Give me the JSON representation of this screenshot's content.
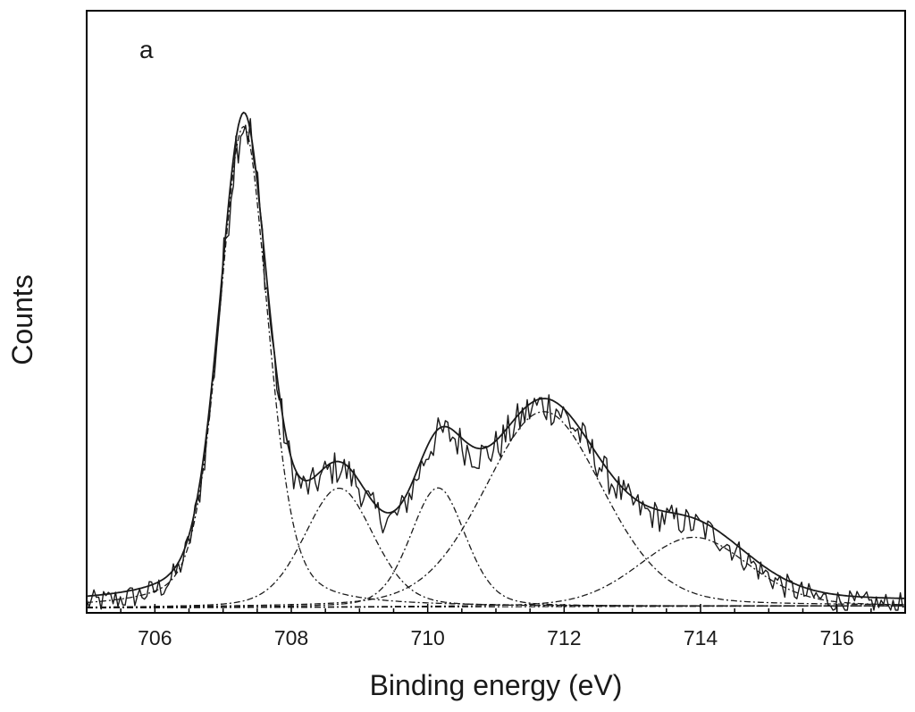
{
  "chart_data": {
    "type": "line",
    "panel_label": "a",
    "xlabel": "Binding energy (eV)",
    "ylabel": "Counts",
    "xlim": [
      705,
      717
    ],
    "ylim": [
      0,
      1000
    ],
    "x_ticks": [
      706,
      708,
      710,
      712,
      714,
      716
    ],
    "x_tick_labels": [
      "706",
      "708",
      "710",
      "712",
      "714",
      "716"
    ],
    "grid": false,
    "legend": "none",
    "colors": {
      "line": "#1a1a1a",
      "axis": "#000000",
      "background": "#ffffff"
    },
    "background_points": [
      {
        "x": 705,
        "y": 4
      },
      {
        "x": 710,
        "y": 6
      },
      {
        "x": 717,
        "y": 8
      }
    ],
    "components": [
      {
        "name": "component-1",
        "center": 707.3,
        "height": 905,
        "fwhm": 0.85,
        "lorentz_fraction": 0.35,
        "style": "dashdot"
      },
      {
        "name": "component-2",
        "center": 708.7,
        "height": 224,
        "fwhm": 1.2,
        "lorentz_fraction": 0.25,
        "style": "dashdot"
      },
      {
        "name": "component-3",
        "center": 710.15,
        "height": 224,
        "fwhm": 0.95,
        "lorentz_fraction": 0.25,
        "style": "dashdot"
      },
      {
        "name": "component-4",
        "center": 711.7,
        "height": 367,
        "fwhm": 2.05,
        "lorentz_fraction": 0.2,
        "style": "dashdot"
      },
      {
        "name": "component-5",
        "center": 713.9,
        "height": 130,
        "fwhm": 1.9,
        "lorentz_fraction": 0.2,
        "style": "dashdot"
      }
    ],
    "measured_spectrum": {
      "name": "measured",
      "style": "solid",
      "x_start": 705,
      "x_end": 717,
      "noise_amplitude": 22,
      "noise_relative": 0.04
    },
    "fit_envelope": {
      "name": "fit-envelope",
      "style": "solid",
      "offset": 8
    }
  }
}
